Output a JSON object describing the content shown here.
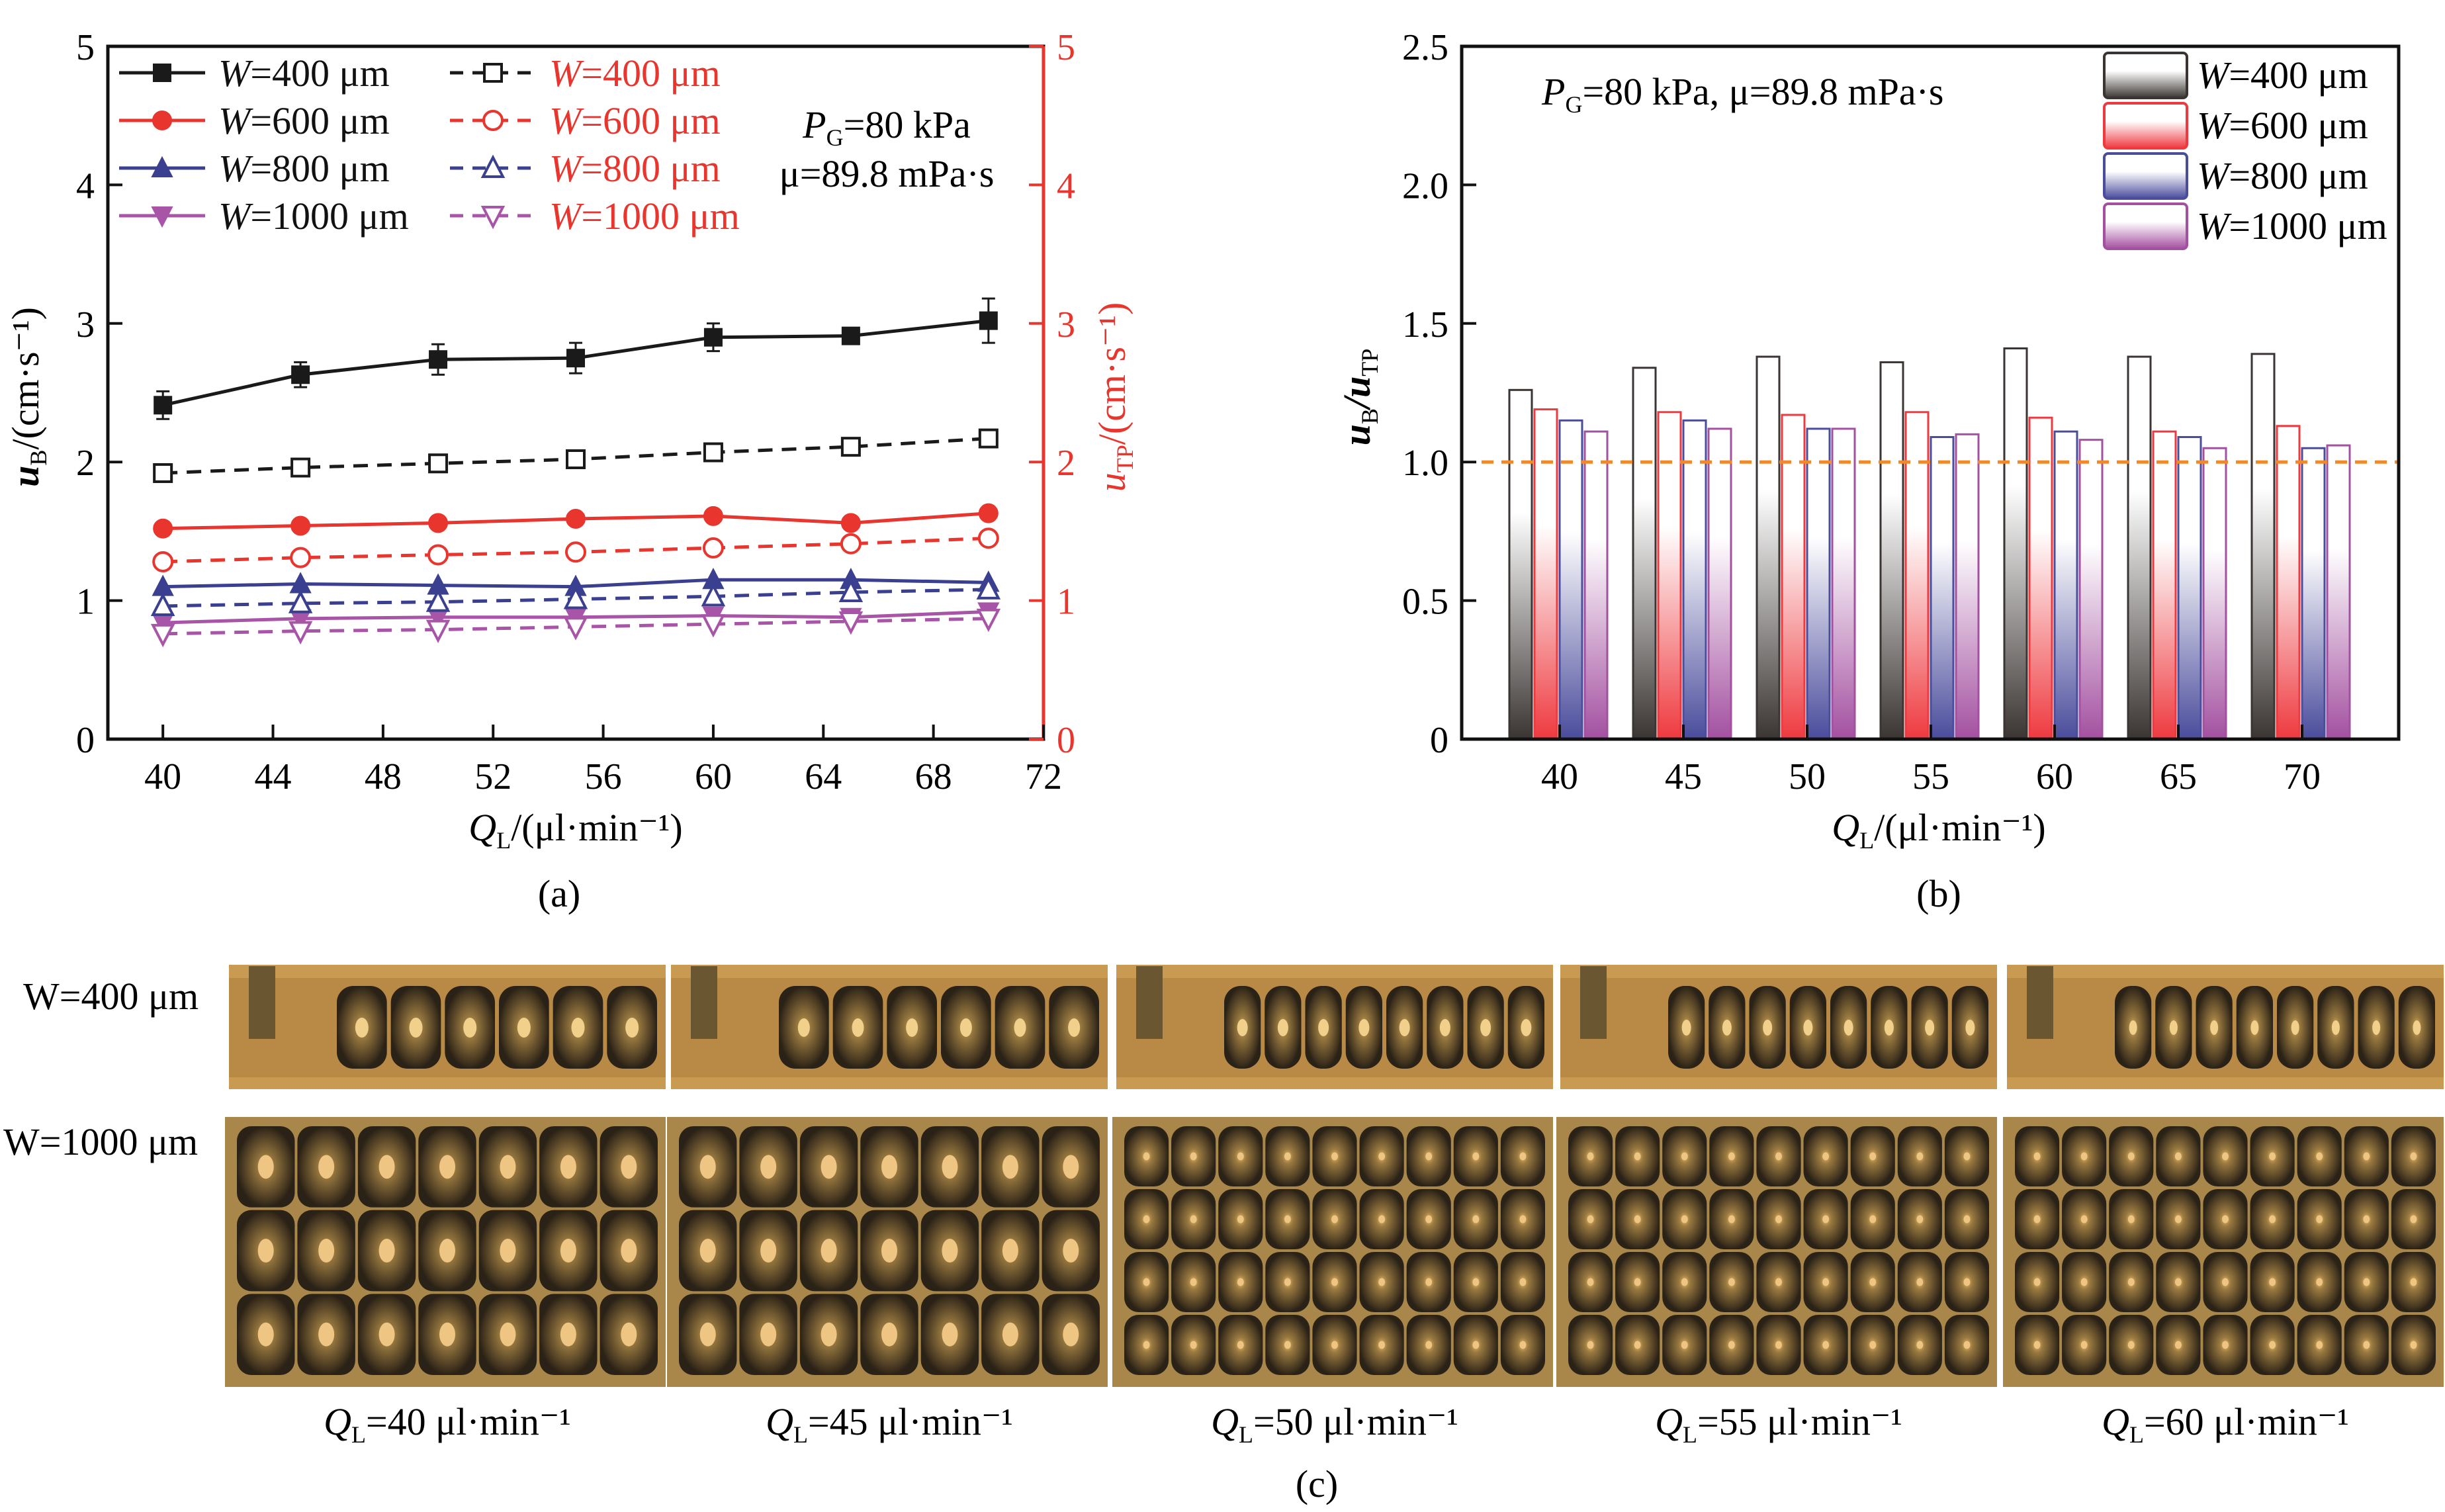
{
  "chart_data": [
    {
      "panel": "(a)",
      "type": "line",
      "xlabel": {
        "main": "Q",
        "sub": "L",
        "rest": "/(μl·min⁻¹)"
      },
      "ylabel": {
        "main": "u",
        "sub": "B",
        "rest": "/(cm·s⁻¹)"
      },
      "y2label": {
        "main": "u",
        "sub": "TP",
        "rest": "/(cm·s⁻¹)"
      },
      "xlim": [
        38,
        72
      ],
      "ylim": [
        0,
        5
      ],
      "y2lim": [
        0,
        5
      ],
      "xticks": [
        "40",
        "44",
        "48",
        "52",
        "56",
        "60",
        "64",
        "68",
        "72"
      ],
      "yticks": [
        "0",
        "1",
        "2",
        "3",
        "4",
        "5"
      ],
      "y2ticks": [
        "0",
        "1",
        "2",
        "3",
        "4",
        "5"
      ],
      "annotation": {
        "line1_main": "P",
        "line1_sub": "G",
        "line1_rest": "=80 kPa",
        "line2": "μ=89.8 mPa·s"
      },
      "x": [
        40,
        45,
        50,
        55,
        60,
        65,
        70
      ],
      "series": [
        {
          "name": "W=400 μm",
          "axis": "left",
          "style": "solid",
          "marker": "square-filled",
          "color": "#1a1a1a",
          "values": [
            2.41,
            2.63,
            2.74,
            2.75,
            2.9,
            2.91,
            3.02
          ],
          "error": [
            0.1,
            0.09,
            0.11,
            0.11,
            0.1,
            0.04,
            0.16
          ]
        },
        {
          "name": "W=600 μm",
          "axis": "left",
          "style": "solid",
          "marker": "circle-filled",
          "color": "#e8352e",
          "values": [
            1.52,
            1.54,
            1.56,
            1.59,
            1.61,
            1.56,
            1.63
          ]
        },
        {
          "name": "W=800 μm",
          "axis": "left",
          "style": "solid",
          "marker": "triangle-up-filled",
          "color": "#3a3f8f",
          "values": [
            1.1,
            1.12,
            1.11,
            1.1,
            1.15,
            1.15,
            1.13
          ]
        },
        {
          "name": "W=1000 μm",
          "axis": "left",
          "style": "solid",
          "marker": "triangle-down-filled",
          "color": "#a855a8",
          "values": [
            0.84,
            0.87,
            0.88,
            0.88,
            0.89,
            0.88,
            0.92
          ]
        },
        {
          "name": "W=400 μm",
          "axis": "right",
          "style": "dashed",
          "marker": "square-open",
          "color": "#1a1a1a",
          "values": [
            1.92,
            1.96,
            1.99,
            2.02,
            2.07,
            2.11,
            2.17
          ]
        },
        {
          "name": "W=600 μm",
          "axis": "right",
          "style": "dashed",
          "marker": "circle-open",
          "color": "#e8352e",
          "values": [
            1.28,
            1.31,
            1.33,
            1.35,
            1.38,
            1.41,
            1.45
          ]
        },
        {
          "name": "W=800 μm",
          "axis": "right",
          "style": "dashed",
          "marker": "triangle-up-open",
          "color": "#3a3f8f",
          "values": [
            0.96,
            0.98,
            0.99,
            1.01,
            1.03,
            1.06,
            1.08
          ]
        },
        {
          "name": "W=1000 μm",
          "axis": "right",
          "style": "dashed",
          "marker": "triangle-down-open",
          "color": "#a855a8",
          "values": [
            0.76,
            0.78,
            0.79,
            0.81,
            0.83,
            0.85,
            0.87
          ]
        }
      ],
      "legend_placement": "top-left",
      "right_axis_color": "#e8352e"
    },
    {
      "panel": "(b)",
      "type": "bar",
      "xlabel": {
        "main": "Q",
        "sub": "L",
        "rest": "/(μl·min⁻¹)"
      },
      "ylabel": {
        "main": "u",
        "sub": "B",
        "mid": "/u",
        "sub2": "TP"
      },
      "ylim": [
        0,
        2.5
      ],
      "yticks": [
        "0",
        "0.5",
        "1.0",
        "1.5",
        "2.0",
        "2.5"
      ],
      "categories": [
        "40",
        "45",
        "50",
        "55",
        "60",
        "65",
        "70"
      ],
      "annotation": {
        "main": "P",
        "sub": "G",
        "rest": "=80 kPa, μ=89.8 mPa·s"
      },
      "reference_line": {
        "y": 1.0,
        "color": "#f0892b",
        "style": "dashed"
      },
      "series": [
        {
          "name": "W=400 μm",
          "color": "#3a3533",
          "values": [
            1.26,
            1.34,
            1.38,
            1.36,
            1.41,
            1.38,
            1.39
          ]
        },
        {
          "name": "W=600 μm",
          "color": "#ee3a3f",
          "values": [
            1.19,
            1.18,
            1.17,
            1.18,
            1.16,
            1.11,
            1.13
          ]
        },
        {
          "name": "W=800 μm",
          "color": "#4a4c9c",
          "values": [
            1.15,
            1.15,
            1.12,
            1.09,
            1.11,
            1.09,
            1.05
          ]
        },
        {
          "name": "W=1000 μm",
          "color": "#a350a0",
          "values": [
            1.11,
            1.12,
            1.12,
            1.1,
            1.08,
            1.05,
            1.06
          ]
        }
      ],
      "legend_placement": "top-right"
    }
  ],
  "photos": {
    "panel": "(c)",
    "rows": [
      {
        "label": "W=400 μm"
      },
      {
        "label": "W=1000 μm"
      }
    ],
    "columns": [
      {
        "main": "Q",
        "sub": "L",
        "rest": "=40 μl·min⁻¹"
      },
      {
        "main": "Q",
        "sub": "L",
        "rest": "=45 μl·min⁻¹"
      },
      {
        "main": "Q",
        "sub": "L",
        "rest": "=50 μl·min⁻¹"
      },
      {
        "main": "Q",
        "sub": "L",
        "rest": "=55 μl·min⁻¹"
      },
      {
        "main": "Q",
        "sub": "L",
        "rest": "=60 μl·min⁻¹"
      }
    ]
  }
}
